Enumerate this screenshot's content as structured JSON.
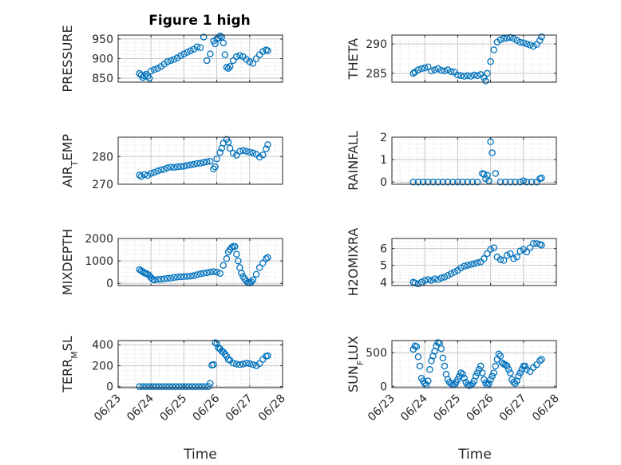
{
  "figure": {
    "title": "Figure 1 high",
    "marker_color": "#0072BD",
    "axis_color": "#262626",
    "grid_color": "#dcdcdc",
    "x_ticks": [
      "06/23",
      "06/24",
      "06/25",
      "06/26",
      "06/27",
      "06/28"
    ],
    "x_label": "Time"
  },
  "chart_data": [
    {
      "type": "scatter",
      "name_panel": "pressure",
      "ylabel": "PRESSURE",
      "ylim": [
        840,
        960
      ],
      "yticks": [
        850,
        900,
        950
      ],
      "x": [
        23.65,
        23.7,
        23.75,
        23.8,
        23.85,
        23.9,
        23.95,
        24.0,
        24.1,
        24.2,
        24.3,
        24.4,
        24.5,
        24.6,
        24.7,
        24.8,
        24.9,
        25.0,
        25.1,
        25.2,
        25.3,
        25.4,
        25.5,
        25.6,
        25.7,
        25.8,
        25.9,
        25.95,
        26.0,
        26.05,
        26.1,
        26.15,
        26.2,
        26.25,
        26.3,
        26.35,
        26.4,
        26.5,
        26.6,
        26.7,
        26.8,
        26.9,
        27.0,
        27.1,
        27.2,
        27.3,
        27.4,
        27.5,
        27.55
      ],
      "y": [
        862,
        858,
        852,
        856,
        860,
        855,
        850,
        868,
        872,
        875,
        880,
        886,
        892,
        895,
        898,
        902,
        907,
        912,
        916,
        920,
        924,
        930,
        928,
        955,
        895,
        912,
        945,
        938,
        950,
        953,
        958,
        955,
        940,
        910,
        878,
        875,
        880,
        895,
        905,
        908,
        905,
        898,
        892,
        888,
        900,
        910,
        918,
        922,
        920
      ]
    },
    {
      "type": "scatter",
      "name_panel": "theta",
      "ylabel": "THETA",
      "ylim": [
        283.5,
        291.5
      ],
      "yticks": [
        285,
        290
      ],
      "x": [
        23.65,
        23.7,
        23.8,
        23.9,
        24.0,
        24.1,
        24.2,
        24.3,
        24.4,
        24.5,
        24.6,
        24.7,
        24.8,
        24.9,
        25.0,
        25.1,
        25.2,
        25.3,
        25.4,
        25.5,
        25.6,
        25.7,
        25.8,
        25.85,
        25.9,
        26.0,
        26.1,
        26.2,
        26.3,
        26.4,
        26.5,
        26.6,
        26.7,
        26.8,
        26.9,
        27.0,
        27.1,
        27.2,
        27.3,
        27.4,
        27.5,
        27.55
      ],
      "y": [
        285,
        285.2,
        285.6,
        285.8,
        285.9,
        286.1,
        285.4,
        285.6,
        285.8,
        285.5,
        285.4,
        285.6,
        285.3,
        285.2,
        284.7,
        284.6,
        284.5,
        284.6,
        284.5,
        284.7,
        284.6,
        284.8,
        284.3,
        283.7,
        285,
        287,
        289,
        290.3,
        290.7,
        290.9,
        291,
        291.1,
        290.9,
        290.6,
        290.3,
        290.2,
        290,
        289.8,
        289.6,
        289.9,
        290.6,
        291.2
      ]
    },
    {
      "type": "scatter",
      "name_panel": "air_temp",
      "ylabel": "AIR_TEMP",
      "ylim": [
        270,
        287
      ],
      "yticks": [
        270,
        280
      ],
      "x": [
        23.65,
        23.7,
        23.8,
        23.9,
        24.0,
        24.1,
        24.2,
        24.3,
        24.4,
        24.5,
        24.6,
        24.7,
        24.8,
        24.9,
        25.0,
        25.1,
        25.2,
        25.3,
        25.4,
        25.5,
        25.6,
        25.7,
        25.8,
        25.9,
        25.95,
        26.0,
        26.1,
        26.15,
        26.2,
        26.3,
        26.35,
        26.4,
        26.5,
        26.6,
        26.7,
        26.8,
        26.9,
        27.0,
        27.1,
        27.2,
        27.3,
        27.4,
        27.5,
        27.55
      ],
      "y": [
        273.3,
        272.8,
        273.5,
        273.2,
        273.9,
        274.3,
        274.8,
        275.2,
        275.4,
        275.9,
        276.2,
        276.1,
        276.3,
        276.4,
        276.5,
        276.8,
        277,
        277.2,
        277.5,
        277.6,
        277.9,
        278.1,
        278.3,
        275.5,
        276.3,
        279.2,
        281.5,
        283,
        284.8,
        286.2,
        285.2,
        283,
        281.2,
        280.5,
        281.9,
        282.2,
        281.9,
        281.6,
        281.3,
        280.8,
        279.8,
        280.6,
        282.8,
        284.3
      ]
    },
    {
      "type": "scatter",
      "name_panel": "rainfall",
      "ylabel": "RAINFALL",
      "ylim": [
        -0.1,
        2
      ],
      "yticks": [
        0,
        1,
        2
      ],
      "x": [
        23.65,
        23.8,
        23.95,
        24.1,
        24.25,
        24.4,
        24.55,
        24.7,
        24.85,
        25.0,
        25.15,
        25.3,
        25.45,
        25.6,
        25.75,
        25.8,
        25.85,
        25.9,
        25.95,
        26.0,
        26.05,
        26.15,
        26.3,
        26.45,
        26.6,
        26.75,
        26.9,
        27.0,
        27.1,
        27.25,
        27.4,
        27.5,
        27.55
      ],
      "y": [
        0,
        0,
        0,
        0,
        0,
        0,
        0,
        0,
        0,
        0,
        0,
        0,
        0,
        0,
        0.38,
        0.35,
        0.15,
        0.3,
        0.05,
        1.8,
        1.3,
        0.38,
        0,
        0,
        0,
        0,
        0,
        0.05,
        0,
        0,
        0,
        0.15,
        0.18
      ]
    },
    {
      "type": "scatter",
      "name_panel": "mixdepth",
      "ylabel": "MIXDEPTH",
      "ylim": [
        -100,
        2000
      ],
      "yticks": [
        0,
        1000,
        2000
      ],
      "x": [
        23.65,
        23.7,
        23.75,
        23.8,
        23.85,
        23.9,
        23.95,
        24.0,
        24.05,
        24.1,
        24.2,
        24.3,
        24.4,
        24.5,
        24.6,
        24.7,
        24.8,
        24.9,
        25.0,
        25.1,
        25.2,
        25.3,
        25.4,
        25.5,
        25.6,
        25.7,
        25.8,
        25.9,
        26.0,
        26.1,
        26.2,
        26.3,
        26.35,
        26.4,
        26.45,
        26.5,
        26.55,
        26.6,
        26.65,
        26.7,
        26.75,
        26.8,
        26.85,
        26.9,
        26.95,
        27.0,
        27.05,
        27.1,
        27.2,
        27.3,
        27.4,
        27.5,
        27.55
      ],
      "y": [
        610,
        560,
        520,
        460,
        440,
        400,
        350,
        250,
        180,
        150,
        170,
        180,
        200,
        220,
        230,
        260,
        280,
        290,
        300,
        310,
        320,
        340,
        380,
        420,
        450,
        470,
        500,
        520,
        500,
        440,
        800,
        1100,
        1400,
        1500,
        1600,
        1650,
        1640,
        1300,
        1000,
        700,
        450,
        300,
        200,
        100,
        40,
        20,
        60,
        150,
        400,
        700,
        900,
        1100,
        1150
      ]
    },
    {
      "type": "scatter",
      "name_panel": "h2omixra",
      "ylabel": "H2OMIXRA",
      "ylim": [
        3.8,
        6.6
      ],
      "yticks": [
        4,
        5,
        6
      ],
      "x": [
        23.65,
        23.7,
        23.8,
        23.9,
        24.0,
        24.1,
        24.2,
        24.3,
        24.4,
        24.5,
        24.6,
        24.7,
        24.8,
        24.9,
        25.0,
        25.1,
        25.2,
        25.3,
        25.4,
        25.5,
        25.6,
        25.7,
        25.8,
        25.9,
        26.0,
        26.1,
        26.2,
        26.3,
        26.4,
        26.5,
        26.6,
        26.7,
        26.8,
        26.9,
        27.0,
        27.1,
        27.2,
        27.3,
        27.4,
        27.5,
        27.55
      ],
      "y": [
        4,
        3.95,
        3.9,
        4,
        4.1,
        4.15,
        4.1,
        4.2,
        4.15,
        4.25,
        4.3,
        4.4,
        4.5,
        4.6,
        4.7,
        4.85,
        4.95,
        5,
        5.05,
        5.1,
        5.15,
        5.2,
        5.4,
        5.7,
        5.95,
        6.05,
        5.5,
        5.35,
        5.3,
        5.6,
        5.7,
        5.4,
        5.5,
        5.85,
        5.95,
        5.8,
        6.05,
        6.3,
        6.3,
        6.25,
        6.2
      ]
    },
    {
      "type": "scatter",
      "name_panel": "terr_msl",
      "ylabel": "TERR_MSL",
      "ylim": [
        -10,
        440
      ],
      "yticks": [
        0,
        200,
        400
      ],
      "x": [
        23.65,
        23.75,
        23.85,
        23.95,
        24.05,
        24.15,
        24.25,
        24.35,
        24.45,
        24.55,
        24.65,
        24.75,
        24.85,
        24.95,
        25.05,
        25.15,
        25.25,
        25.35,
        25.45,
        25.55,
        25.65,
        25.75,
        25.8,
        25.85,
        25.9,
        25.95,
        26.0,
        26.05,
        26.1,
        26.15,
        26.2,
        26.25,
        26.3,
        26.35,
        26.4,
        26.5,
        26.6,
        26.7,
        26.8,
        26.9,
        27.0,
        27.1,
        27.2,
        27.3,
        27.4,
        27.5,
        27.55
      ],
      "y": [
        0,
        0,
        0,
        0,
        0,
        0,
        0,
        0,
        0,
        0,
        0,
        0,
        0,
        0,
        0,
        0,
        0,
        0,
        0,
        0,
        0,
        0,
        30,
        205,
        210,
        420,
        410,
        370,
        360,
        340,
        330,
        310,
        290,
        260,
        250,
        225,
        215,
        210,
        215,
        225,
        220,
        210,
        200,
        220,
        260,
        290,
        295
      ]
    },
    {
      "type": "scatter",
      "name_panel": "sun_flux",
      "ylabel": "SUN_FLUX",
      "ylim": [
        -20,
        680
      ],
      "yticks": [
        0,
        500
      ],
      "x": [
        23.65,
        23.7,
        23.75,
        23.8,
        23.85,
        23.9,
        23.95,
        24.0,
        24.05,
        24.1,
        24.15,
        24.2,
        24.25,
        24.3,
        24.35,
        24.4,
        24.45,
        24.5,
        24.55,
        24.6,
        24.65,
        24.7,
        24.75,
        24.8,
        24.85,
        24.9,
        24.95,
        25.0,
        25.05,
        25.1,
        25.15,
        25.2,
        25.25,
        25.3,
        25.35,
        25.4,
        25.45,
        25.5,
        25.55,
        25.6,
        25.65,
        25.7,
        25.75,
        25.8,
        25.85,
        25.9,
        25.95,
        26.0,
        26.05,
        26.1,
        26.15,
        26.2,
        26.25,
        26.3,
        26.35,
        26.4,
        26.45,
        26.5,
        26.55,
        26.6,
        26.65,
        26.7,
        26.75,
        26.8,
        26.85,
        26.9,
        26.95,
        27.0,
        27.05,
        27.1,
        27.2,
        27.3,
        27.4,
        27.5,
        27.55
      ],
      "y": [
        550,
        600,
        590,
        440,
        300,
        120,
        80,
        40,
        20,
        80,
        250,
        380,
        450,
        520,
        600,
        650,
        640,
        560,
        420,
        300,
        180,
        100,
        60,
        40,
        20,
        30,
        60,
        100,
        150,
        200,
        180,
        120,
        60,
        20,
        10,
        20,
        40,
        80,
        150,
        200,
        250,
        300,
        200,
        100,
        50,
        20,
        40,
        100,
        150,
        200,
        300,
        400,
        480,
        450,
        350,
        330,
        320,
        300,
        250,
        200,
        100,
        60,
        40,
        80,
        150,
        200,
        250,
        300,
        300,
        250,
        220,
        280,
        320,
        380,
        400
      ]
    }
  ]
}
